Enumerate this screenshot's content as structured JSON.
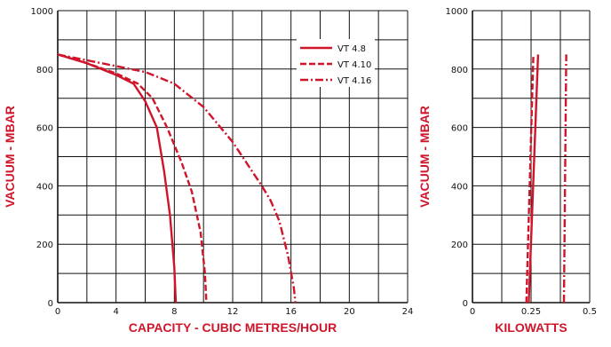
{
  "colors": {
    "series": "#d0152a",
    "grid": "#111111",
    "label": "#d0152a"
  },
  "chart_data": [
    {
      "type": "line",
      "xlabel": "CAPACITY - CUBIC METRES/HOUR",
      "ylabel": "VACUUM - MBAR",
      "xlim": [
        0,
        24
      ],
      "ylim": [
        0,
        1000
      ],
      "xticks": [
        0,
        4,
        8,
        12,
        16,
        20,
        24
      ],
      "yticks": [
        0,
        200,
        400,
        600,
        800,
        1000
      ],
      "grid": true,
      "legend_position": "top-right",
      "series": [
        {
          "name": "VT 4.8",
          "style": "solid",
          "x": [
            0,
            2,
            4,
            5.2,
            6,
            6.8,
            7.3,
            7.7,
            8.0,
            8.1
          ],
          "y": [
            850,
            820,
            780,
            750,
            690,
            600,
            450,
            300,
            120,
            0
          ]
        },
        {
          "name": "VT 4.10",
          "style": "dashed",
          "x": [
            0,
            2,
            4,
            5.5,
            6.5,
            7.5,
            8.5,
            9.2,
            9.8,
            10.1,
            10.2
          ],
          "y": [
            850,
            820,
            785,
            750,
            700,
            600,
            480,
            380,
            240,
            100,
            0
          ]
        },
        {
          "name": "VT 4.16",
          "style": "dashdot",
          "x": [
            0,
            2,
            4,
            6,
            8,
            10,
            12,
            13.2,
            14.0,
            14.6,
            15.2,
            15.8,
            16.2,
            16.3
          ],
          "y": [
            850,
            830,
            810,
            790,
            750,
            670,
            550,
            460,
            400,
            350,
            280,
            160,
            50,
            0
          ]
        }
      ]
    },
    {
      "type": "line",
      "xlabel": "KILOWATTS",
      "ylabel": "VACUUM - MBAR",
      "xlim": [
        0,
        0.5
      ],
      "ylim": [
        0,
        1000
      ],
      "xticks": [
        0,
        0.25,
        0.5
      ],
      "xtick_labels": [
        "0",
        "0.25",
        "0.5"
      ],
      "yticks": [
        0,
        200,
        400,
        600,
        800,
        1000
      ],
      "grid": true,
      "series": [
        {
          "name": "VT 4.8",
          "style": "solid",
          "x": [
            0.24,
            0.28
          ],
          "y": [
            0,
            850
          ]
        },
        {
          "name": "VT 4.10",
          "style": "dashed",
          "x": [
            0.23,
            0.26
          ],
          "y": [
            0,
            850
          ]
        },
        {
          "name": "VT 4.16",
          "style": "dashdot",
          "x": [
            0.39,
            0.4
          ],
          "y": [
            0,
            850
          ]
        }
      ]
    }
  ]
}
